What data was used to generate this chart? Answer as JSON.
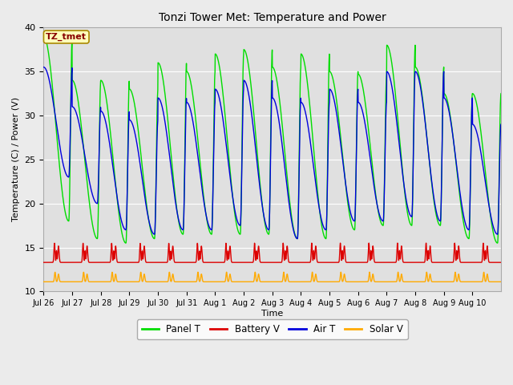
{
  "title": "Tonzi Tower Met: Temperature and Power",
  "xlabel": "Time",
  "ylabel": "Temperature (C) / Power (V)",
  "ylim": [
    10,
    40
  ],
  "background_color": "#ebebeb",
  "plot_bg_color": "#e0e0e0",
  "grid_color": "#ffffff",
  "legend_labels": [
    "Panel T",
    "Battery V",
    "Air T",
    "Solar V"
  ],
  "legend_colors": [
    "#00dd00",
    "#dd0000",
    "#0000dd",
    "#ffaa00"
  ],
  "annotation_text": "TZ_tmet",
  "annotation_bg": "#ffffbb",
  "annotation_text_color": "#880000",
  "tick_labels": [
    "Jul 26",
    "Jul 27",
    "Jul 28",
    "Jul 29",
    "Jul 30",
    "Jul 31",
    "Aug 1",
    "Aug 2",
    "Aug 3",
    "Aug 4",
    "Aug 5",
    "Aug 6",
    "Aug 7",
    "Aug 8",
    "Aug 9",
    "Aug 10"
  ],
  "num_days": 16,
  "panel_peaks": [
    39,
    34,
    34,
    33,
    36,
    35,
    37,
    37.5,
    35.5,
    37,
    35,
    34.7,
    38,
    35.5,
    32.5,
    32.5
  ],
  "panel_mins": [
    18,
    16,
    15.5,
    16,
    16.5,
    16.5,
    16.5,
    16.5,
    16,
    16,
    17,
    17.5,
    17.5,
    17.5,
    16,
    15.5
  ],
  "air_peaks": [
    35.5,
    31,
    30.5,
    29.5,
    32,
    31.5,
    33,
    34,
    32,
    31.5,
    33,
    31.5,
    35,
    35,
    32,
    29
  ],
  "air_mins": [
    23,
    20,
    17,
    16.5,
    17,
    17,
    17.5,
    17,
    16,
    17,
    18,
    18,
    18.5,
    18,
    17,
    16.5
  ],
  "batt_base": 13.3,
  "batt_peak": 15.5,
  "solar_base": 11.1,
  "solar_peak": 12.2
}
